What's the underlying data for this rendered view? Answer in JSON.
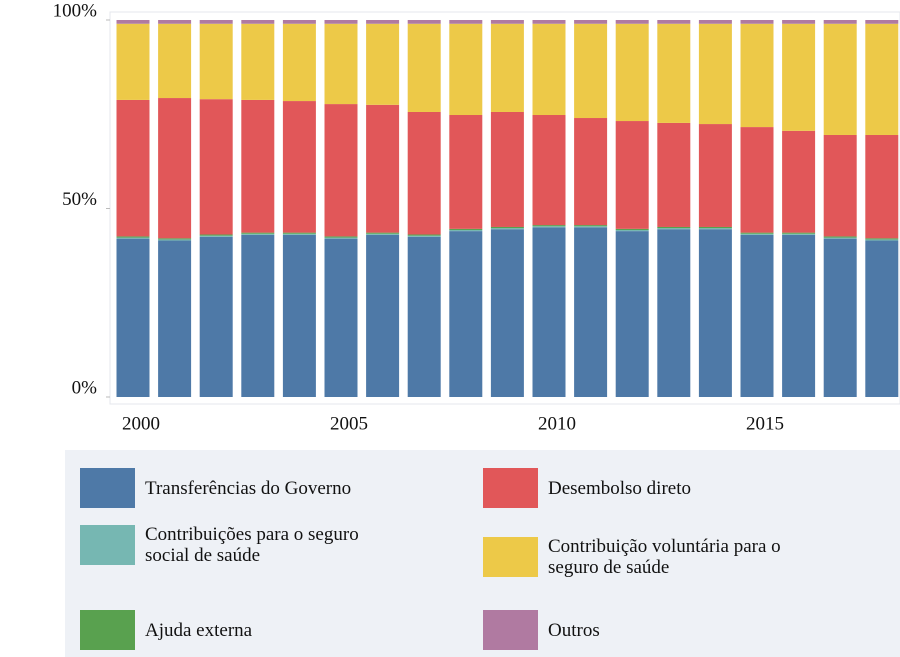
{
  "chart_data": {
    "type": "stacked_bar",
    "categories": [
      "2000",
      null,
      null,
      null,
      null,
      "2005",
      null,
      null,
      null,
      null,
      "2010",
      null,
      null,
      null,
      null,
      "2015",
      null,
      null,
      null
    ],
    "series": [
      {
        "name": "Transferências do Governo",
        "color": "#4e79a7",
        "values": [
          42,
          41.5,
          42.5,
          43,
          43,
          42,
          43,
          42.5,
          44,
          44.5,
          45,
          45,
          44,
          44.5,
          44.5,
          43,
          43,
          42,
          41.5
        ]
      },
      {
        "name": "Contribuições para o seguro social de saúde",
        "color": "#76b7b2",
        "values": [
          0.3,
          0.3,
          0.3,
          0.3,
          0.3,
          0.3,
          0.3,
          0.3,
          0.3,
          0.3,
          0.3,
          0.3,
          0.3,
          0.3,
          0.3,
          0.3,
          0.3,
          0.3,
          0.3
        ]
      },
      {
        "name": "Ajuda externa",
        "color": "#59a14f",
        "values": [
          0.3,
          0.3,
          0.3,
          0.3,
          0.3,
          0.3,
          0.3,
          0.3,
          0.3,
          0.3,
          0.3,
          0.3,
          0.3,
          0.3,
          0.3,
          0.3,
          0.3,
          0.3,
          0.3
        ]
      },
      {
        "name": "Desembolso direto",
        "color": "#e15759",
        "values": [
          36.2,
          37.2,
          35.9,
          35.2,
          34.9,
          35.1,
          33.9,
          32.5,
          30.2,
          30.5,
          29.2,
          28.4,
          28.6,
          27.6,
          27.3,
          28,
          27,
          26.9,
          27.4
        ]
      },
      {
        "name": "Contribuição voluntária para o seguro de saúde",
        "color": "#edc948",
        "values": [
          20.2,
          19.7,
          20,
          20.2,
          20.5,
          21.3,
          21.5,
          23.4,
          24.2,
          23.4,
          24.2,
          25,
          25.8,
          26.3,
          26.6,
          27.4,
          28.4,
          29.5,
          29.5
        ]
      },
      {
        "name": "Outros",
        "color": "#b07aa1",
        "values": [
          1,
          1,
          1,
          1,
          1,
          1,
          1,
          1,
          1,
          1,
          1,
          1,
          1,
          1,
          1,
          1,
          1,
          1,
          1
        ]
      }
    ],
    "ylim": [
      0,
      100
    ],
    "yticks": [
      {
        "value": 0,
        "label": "0%"
      },
      {
        "value": 50,
        "label": "50%"
      },
      {
        "value": 100,
        "label": "100%"
      }
    ],
    "legend": "bottom"
  }
}
